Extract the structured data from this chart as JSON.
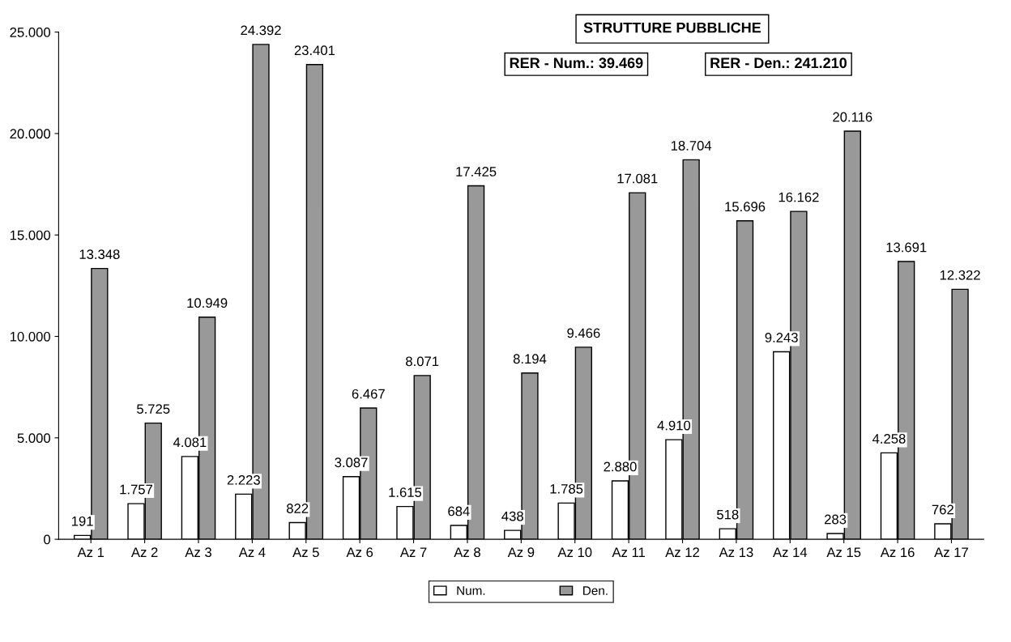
{
  "chart_data": {
    "type": "bar",
    "title": "STRUTTURE PUBBLICHE",
    "annotations": [
      "RER - Num.: 39.469",
      "RER - Den.: 241.210"
    ],
    "categories": [
      "Az 1",
      "Az 2",
      "Az 3",
      "Az 4",
      "Az 5",
      "Az 6",
      "Az 7",
      "Az 8",
      "Az 9",
      "Az 10",
      "Az 11",
      "Az 12",
      "Az 13",
      "Az 14",
      "Az 15",
      "Az 16",
      "Az 17"
    ],
    "series": [
      {
        "name": "Num.",
        "color": "#ffffff",
        "values": [
          191,
          1757,
          4081,
          2223,
          822,
          3087,
          1615,
          684,
          438,
          1785,
          2880,
          4910,
          518,
          9243,
          283,
          4258,
          762
        ],
        "value_labels": [
          "191",
          "1.757",
          "4.081",
          "2.223",
          "822",
          "3.087",
          "1.615",
          "684",
          "438",
          "1.785",
          "2.880",
          "4.910",
          "518",
          "9.243",
          "283",
          "4.258",
          "762"
        ]
      },
      {
        "name": "Den.",
        "color": "#999999",
        "values": [
          13348,
          5725,
          10949,
          24392,
          23401,
          6467,
          8071,
          17425,
          8194,
          9466,
          17081,
          18704,
          15696,
          16162,
          20116,
          13691,
          12322
        ],
        "value_labels": [
          "13.348",
          "5.725",
          "10.949",
          "24.392",
          "23.401",
          "6.467",
          "8.071",
          "17.425",
          "8.194",
          "9.466",
          "17.081",
          "18.704",
          "15.696",
          "16.162",
          "20.116",
          "13.691",
          "12.322"
        ]
      }
    ],
    "ylim": [
      0,
      25000
    ],
    "yticks": [
      {
        "value": 0,
        "label": "0"
      },
      {
        "value": 5000,
        "label": "5.000"
      },
      {
        "value": 10000,
        "label": "10.000"
      },
      {
        "value": 15000,
        "label": "15.000"
      },
      {
        "value": 20000,
        "label": "20.000"
      },
      {
        "value": 25000,
        "label": "25.000"
      }
    ],
    "grid": false,
    "legend": "bottom"
  }
}
